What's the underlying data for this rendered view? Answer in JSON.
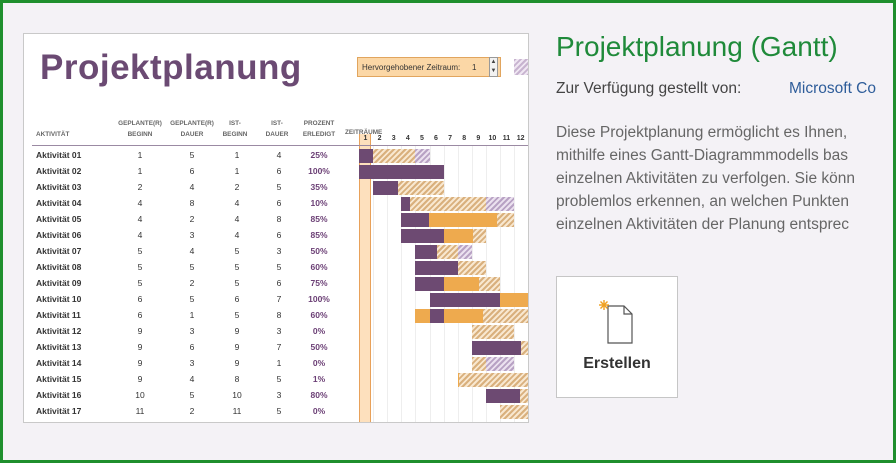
{
  "template": {
    "sheet_title": "Projektplanung",
    "highlight_label": "Hervorgehobener Zeitraum:",
    "highlight_value": "1",
    "headers": {
      "activity": "AKTIVITÄT",
      "plan_start": [
        "GEPLANTE(R)",
        "BEGINN"
      ],
      "plan_dur": [
        "GEPLANTE(R)",
        "DAUER"
      ],
      "act_start": [
        "IST-",
        "BEGINN"
      ],
      "act_dur": [
        "IST-",
        "DAUER"
      ],
      "pct": [
        "PROZENT",
        "ERLEDIGT"
      ],
      "timeline": "ZEITRÄUME"
    },
    "days": [
      "1",
      "2",
      "3",
      "4",
      "5",
      "6",
      "7",
      "8",
      "9",
      "10",
      "11",
      "12"
    ],
    "rows": [
      {
        "name": "Aktivität 01",
        "ps": "1",
        "pd": "5",
        "as": "1",
        "ad": "4",
        "pct": "25%"
      },
      {
        "name": "Aktivität 02",
        "ps": "1",
        "pd": "6",
        "as": "1",
        "ad": "6",
        "pct": "100%"
      },
      {
        "name": "Aktivität 03",
        "ps": "2",
        "pd": "4",
        "as": "2",
        "ad": "5",
        "pct": "35%"
      },
      {
        "name": "Aktivität 04",
        "ps": "4",
        "pd": "8",
        "as": "4",
        "ad": "6",
        "pct": "10%"
      },
      {
        "name": "Aktivität 05",
        "ps": "4",
        "pd": "2",
        "as": "4",
        "ad": "8",
        "pct": "85%"
      },
      {
        "name": "Aktivität 06",
        "ps": "4",
        "pd": "3",
        "as": "4",
        "ad": "6",
        "pct": "85%"
      },
      {
        "name": "Aktivität 07",
        "ps": "5",
        "pd": "4",
        "as": "5",
        "ad": "3",
        "pct": "50%"
      },
      {
        "name": "Aktivität 08",
        "ps": "5",
        "pd": "5",
        "as": "5",
        "ad": "5",
        "pct": "60%"
      },
      {
        "name": "Aktivität 09",
        "ps": "5",
        "pd": "2",
        "as": "5",
        "ad": "6",
        "pct": "75%"
      },
      {
        "name": "Aktivität 10",
        "ps": "6",
        "pd": "5",
        "as": "6",
        "ad": "7",
        "pct": "100%"
      },
      {
        "name": "Aktivität 11",
        "ps": "6",
        "pd": "1",
        "as": "5",
        "ad": "8",
        "pct": "60%"
      },
      {
        "name": "Aktivität 12",
        "ps": "9",
        "pd": "3",
        "as": "9",
        "ad": "3",
        "pct": "0%"
      },
      {
        "name": "Aktivität 13",
        "ps": "9",
        "pd": "6",
        "as": "9",
        "ad": "7",
        "pct": "50%"
      },
      {
        "name": "Aktivität 14",
        "ps": "9",
        "pd": "3",
        "as": "9",
        "ad": "1",
        "pct": "0%"
      },
      {
        "name": "Aktivität 15",
        "ps": "9",
        "pd": "4",
        "as": "8",
        "ad": "5",
        "pct": "1%"
      },
      {
        "name": "Aktivität 16",
        "ps": "10",
        "pd": "5",
        "as": "10",
        "ad": "3",
        "pct": "80%"
      },
      {
        "name": "Aktivität 17",
        "ps": "11",
        "pd": "2",
        "as": "11",
        "ad": "5",
        "pct": "0%"
      }
    ]
  },
  "details": {
    "title": "Projektplanung (Gantt)",
    "provided_by_label": "Zur Verfügung gestellt von:",
    "publisher": "Microsoft Co",
    "description_lines": [
      "Diese Projektplanung ermöglicht es Ihnen,",
      "mithilfe eines Gantt-Diagrammmodells bas",
      "einzelnen Aktivitäten zu verfolgen. Sie könn",
      "problemlos erkennen, an welchen Punkten",
      "einzelnen Aktivitäten der Planung entsprec"
    ],
    "create_label": "Erstellen",
    "create_icon": "new-document-icon"
  },
  "colors": {
    "frame": "#1f8f2d",
    "title_green": "#1f8a3a",
    "publisher_blue": "#2e5d9a",
    "purple": "#6d4a72",
    "orange": "#eeaa4e"
  }
}
